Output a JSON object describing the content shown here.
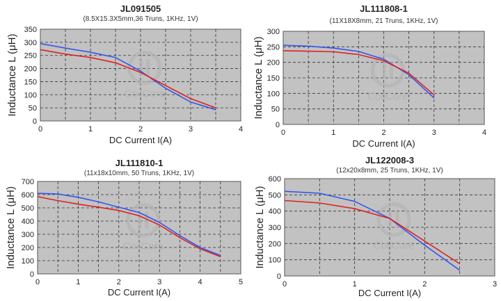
{
  "chart_data": [
    {
      "type": "line",
      "title": "JL091505",
      "subtitle": "(8.5X15.3X5mm,36 Truns, 1KHz, 1V)",
      "xlabel": "DC Current I(A)",
      "ylabel": "Inductance L (μH)",
      "xlim": [
        0,
        4
      ],
      "ylim": [
        0,
        350
      ],
      "xticks": [
        0,
        1,
        2,
        3,
        4
      ],
      "yticks": [
        0,
        50,
        100,
        150,
        200,
        250,
        300,
        350
      ],
      "series": [
        {
          "name": "blue",
          "color": "#3355ee",
          "x": [
            0,
            0.5,
            1,
            1.5,
            2,
            2.5,
            3,
            3.5
          ],
          "y": [
            295,
            278,
            262,
            242,
            190,
            125,
            72,
            43
          ]
        },
        {
          "name": "red",
          "color": "#e02020",
          "x": [
            0,
            0.5,
            1,
            1.5,
            2,
            2.5,
            3,
            3.5
          ],
          "y": [
            272,
            255,
            242,
            222,
            185,
            135,
            85,
            50
          ]
        }
      ],
      "watermark": "CoilCore"
    },
    {
      "type": "line",
      "title": "JL111808-1",
      "subtitle": "(11X18X8mm, 21 Truns, 1KHz, 1V)",
      "xlabel": "DC Current I(A)",
      "ylabel": "Inductance L (μH)",
      "xlim": [
        0,
        4
      ],
      "ylim": [
        0,
        300
      ],
      "xticks": [
        0,
        1,
        2,
        3,
        4
      ],
      "yticks": [
        0,
        50,
        100,
        150,
        200,
        250,
        300
      ],
      "series": [
        {
          "name": "blue",
          "color": "#3355ee",
          "x": [
            0,
            0.5,
            1,
            1.5,
            2,
            2.5,
            3
          ],
          "y": [
            255,
            252,
            246,
            235,
            210,
            160,
            85
          ]
        },
        {
          "name": "red",
          "color": "#e02020",
          "x": [
            0,
            0.5,
            1,
            1.5,
            2,
            2.5,
            3
          ],
          "y": [
            237,
            236,
            234,
            225,
            205,
            165,
            95
          ]
        }
      ],
      "watermark": "CoilCore"
    },
    {
      "type": "line",
      "title": "JL111810-1",
      "subtitle": "(11x18x10mm, 50 Truns, 1KHz, 1V)",
      "xlabel": "DC Current I(A)",
      "ylabel": "Inductance L (μH)",
      "xlim": [
        0,
        5
      ],
      "ylim": [
        0,
        700
      ],
      "xticks": [
        0,
        1,
        2,
        3,
        4,
        5
      ],
      "yticks": [
        0,
        100,
        200,
        300,
        400,
        500,
        600,
        700
      ],
      "series": [
        {
          "name": "blue",
          "color": "#3355ee",
          "x": [
            0,
            0.5,
            1,
            1.5,
            2,
            2.5,
            3,
            3.5,
            4,
            4.5
          ],
          "y": [
            610,
            605,
            580,
            545,
            505,
            465,
            390,
            290,
            200,
            140
          ]
        },
        {
          "name": "red",
          "color": "#e02020",
          "x": [
            0,
            0.5,
            1,
            1.5,
            2,
            2.5,
            3,
            3.5,
            4,
            4.5
          ],
          "y": [
            585,
            555,
            528,
            505,
            480,
            440,
            370,
            275,
            190,
            130
          ]
        }
      ],
      "watermark": "CoilCore"
    },
    {
      "type": "line",
      "title": "JL122008-3",
      "subtitle": "(12x20x8mm, 25 Truns, 1KHz, 1V)",
      "xlabel": "DC Current I(A)",
      "ylabel": "Inductance L (μH)",
      "xlim": [
        0,
        3
      ],
      "ylim": [
        0,
        600
      ],
      "xticks": [
        0,
        1,
        2,
        3
      ],
      "yticks": [
        0,
        100,
        200,
        300,
        400,
        500,
        600
      ],
      "series": [
        {
          "name": "blue",
          "color": "#3355ee",
          "x": [
            0,
            0.5,
            1,
            1.5,
            2,
            2.5
          ],
          "y": [
            522,
            510,
            460,
            355,
            190,
            35
          ]
        },
        {
          "name": "red",
          "color": "#e02020",
          "x": [
            0,
            0.5,
            1,
            1.5,
            2,
            2.5
          ],
          "y": [
            465,
            450,
            415,
            355,
            215,
            75
          ]
        }
      ],
      "watermark": "CoilCore"
    }
  ]
}
